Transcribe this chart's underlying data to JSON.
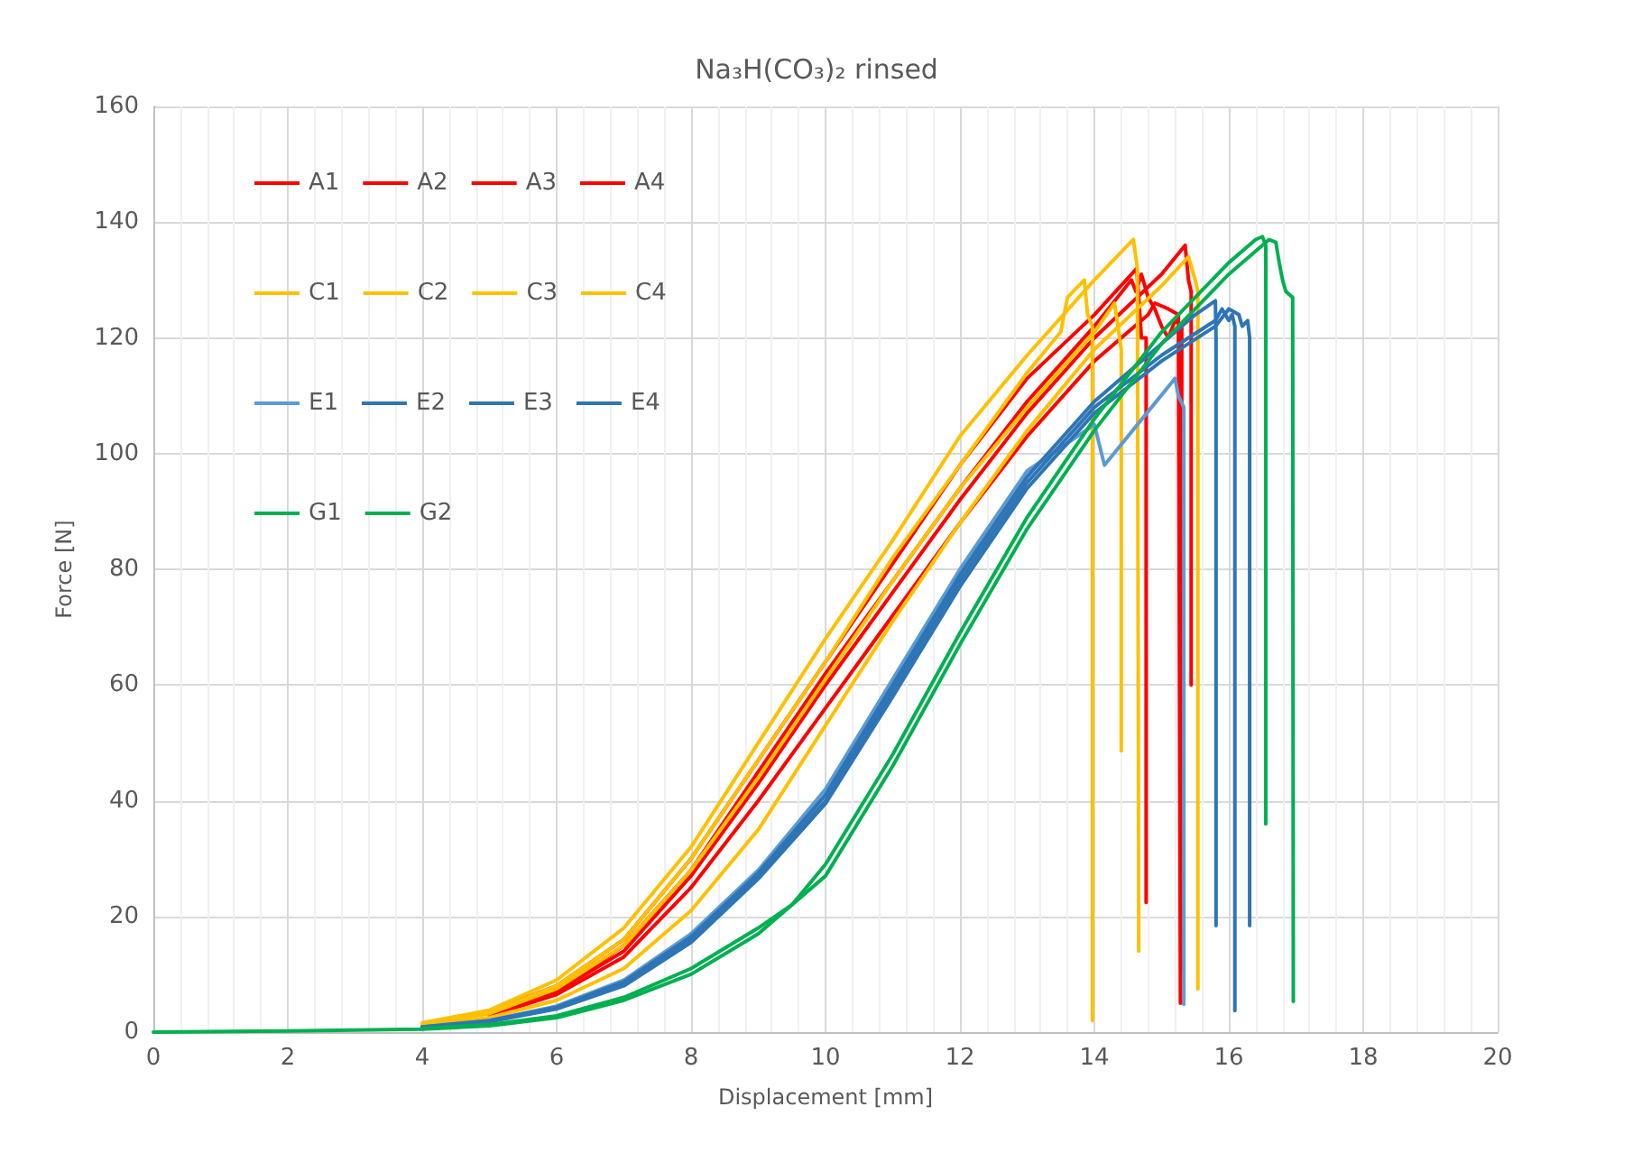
{
  "chart_data": {
    "type": "line",
    "title": "Na₃H(CO₃)₂ rinsed",
    "xlabel": "Displacement [mm]",
    "ylabel": "Force [N]",
    "xlim": [
      0,
      20
    ],
    "ylim": [
      0,
      160
    ],
    "xticks": [
      0,
      2,
      4,
      6,
      8,
      10,
      12,
      14,
      16,
      18,
      20
    ],
    "yticks": [
      0,
      20,
      40,
      60,
      80,
      100,
      120,
      140,
      160
    ],
    "grid": true,
    "legend": "top left",
    "marker": "none",
    "line_style": "solid",
    "series": [
      {
        "name": "A1",
        "color": "#ff0000",
        "x": [
          5,
          6,
          7,
          8,
          9,
          10,
          11,
          12,
          13,
          14,
          14.63,
          14.7,
          14.77,
          14.77
        ],
        "values": [
          3.5,
          8,
          16,
          30,
          47,
          64,
          81,
          98,
          113,
          124,
          132,
          120,
          120,
          22.4
        ]
      },
      {
        "name": "A2",
        "color": "#ff0000",
        "x": [
          5,
          6,
          7,
          8,
          9,
          10,
          11,
          12,
          13,
          14,
          15,
          15.35,
          15.4,
          15.44,
          15.44
        ],
        "values": [
          3,
          7,
          14,
          27,
          43,
          60,
          76,
          92,
          107,
          120,
          131,
          136,
          130,
          128,
          60
        ]
      },
      {
        "name": "A3",
        "color": "#ff0000",
        "x": [
          5,
          6,
          7,
          8,
          9,
          10,
          11,
          12,
          13,
          14,
          14.55,
          14.62,
          14.7,
          14.8,
          14.9,
          15,
          15.1,
          15.2,
          15.3,
          15.3
        ],
        "values": [
          3,
          7,
          15,
          28,
          45,
          62,
          78,
          94,
          109,
          122,
          130,
          128,
          131,
          127,
          125,
          122,
          120,
          123,
          122,
          10.5
        ]
      },
      {
        "name": "A4",
        "color": "#ff0000",
        "x": [
          5,
          6,
          7,
          8,
          9,
          10,
          11,
          12,
          13,
          14,
          14.8,
          14.9,
          15.1,
          15.25,
          15.28
        ],
        "values": [
          2.8,
          6.5,
          13,
          25,
          40,
          56,
          72,
          88,
          103,
          116,
          124,
          126,
          125,
          124,
          5
        ]
      },
      {
        "name": "C1",
        "color": "#ffc000",
        "x": [
          4,
          5,
          6,
          7,
          8,
          9,
          10,
          11,
          12,
          13,
          14,
          14.58,
          14.64,
          14.66
        ],
        "values": [
          1.6,
          3.8,
          9,
          18,
          32,
          50,
          68,
          85,
          103,
          117,
          130,
          137,
          132,
          14
        ]
      },
      {
        "name": "C2",
        "color": "#ffc000",
        "x": [
          4,
          5,
          6,
          7,
          8,
          9,
          10,
          11,
          12,
          13,
          13.5,
          13.6,
          13.85,
          13.9,
          13.97,
          13.97
        ],
        "values": [
          1.4,
          3.4,
          8,
          16,
          30,
          47,
          64,
          82,
          98,
          114,
          121,
          127,
          130,
          124,
          122,
          2
        ]
      },
      {
        "name": "C3",
        "color": "#ffc000",
        "x": [
          4,
          5,
          6,
          7,
          8,
          9,
          10,
          11,
          12,
          13,
          14,
          14.3,
          14.35,
          14.4,
          14.4
        ],
        "values": [
          1.3,
          3.2,
          7.5,
          15,
          28,
          44,
          61,
          78,
          94,
          108,
          121,
          126,
          122,
          118,
          48.6
        ]
      },
      {
        "name": "C4",
        "color": "#ffc000",
        "x": [
          4,
          5,
          6,
          7,
          8,
          9,
          10,
          11,
          12,
          13,
          14,
          15,
          15.4,
          15.5,
          15.54,
          15.54
        ],
        "values": [
          1,
          2.5,
          5.5,
          11,
          21,
          35,
          53,
          71,
          88,
          104,
          118,
          129,
          134,
          130,
          128,
          7.5
        ]
      },
      {
        "name": "E1",
        "color": "#5b9bd5",
        "x": [
          4,
          5,
          6,
          7,
          8,
          9,
          10,
          11,
          12,
          13,
          14,
          14.15,
          14.5,
          15.2,
          15.25,
          15.33,
          15.33
        ],
        "values": [
          0.9,
          2,
          4.5,
          9,
          17,
          28,
          42,
          61,
          80,
          97,
          105,
          98,
          103,
          113,
          110,
          108,
          4.8
        ]
      },
      {
        "name": "E2",
        "color": "#2e75b6",
        "x": [
          4,
          5,
          6,
          7,
          8,
          9,
          10,
          11,
          12,
          13,
          14,
          15,
          15.5,
          15.8,
          15.81,
          15.81
        ],
        "values": [
          0.9,
          2,
          4.3,
          8.7,
          16.5,
          27.5,
          41,
          60,
          79,
          96,
          109,
          119,
          124,
          126.4,
          120,
          18.4
        ]
      },
      {
        "name": "E3",
        "color": "#2e75b6",
        "x": [
          4,
          5,
          6,
          7,
          8,
          9,
          10,
          11,
          12,
          13,
          14,
          15,
          15.8,
          15.9,
          16,
          16.05,
          16.09,
          16.09
        ],
        "values": [
          0.8,
          1.9,
          4.1,
          8.3,
          16,
          27,
          40,
          59,
          78,
          95,
          108,
          117,
          123,
          125,
          123,
          124,
          122,
          3.7
        ]
      },
      {
        "name": "E4",
        "color": "#2e75b6",
        "x": [
          4,
          5,
          6,
          7,
          8,
          9,
          10,
          11,
          12,
          13,
          14,
          15,
          15.8,
          16,
          16.15,
          16.2,
          16.28,
          16.31,
          16.31
        ],
        "values": [
          0.8,
          1.8,
          4,
          8,
          15.5,
          26.5,
          39.5,
          58,
          77,
          94,
          107,
          116,
          122,
          125,
          124,
          122,
          123,
          120,
          18.4
        ]
      },
      {
        "name": "G1",
        "color": "#00b050",
        "x": [
          4,
          5,
          6,
          7,
          8,
          9,
          9.5,
          10,
          11,
          12,
          13,
          14,
          15,
          16,
          16.4,
          16.5,
          16.55,
          16.55
        ],
        "values": [
          0.6,
          1.3,
          2.8,
          6,
          11,
          18,
          22,
          29,
          48,
          69,
          89,
          106,
          121,
          133,
          137,
          137.5,
          136,
          36
        ]
      },
      {
        "name": "G2",
        "color": "#00b050",
        "x": [
          0,
          2,
          4,
          5,
          6,
          7,
          8,
          9,
          10,
          11,
          12,
          13,
          14,
          15,
          16,
          16.6,
          16.7,
          16.75,
          16.8,
          16.85,
          16.95,
          16.96
        ],
        "values": [
          0,
          0.2,
          0.5,
          1.1,
          2.5,
          5.5,
          10,
          17,
          27,
          46,
          67,
          87,
          104,
          119,
          131,
          137,
          136.5,
          133,
          130,
          128,
          127,
          5.3
        ]
      }
    ]
  }
}
